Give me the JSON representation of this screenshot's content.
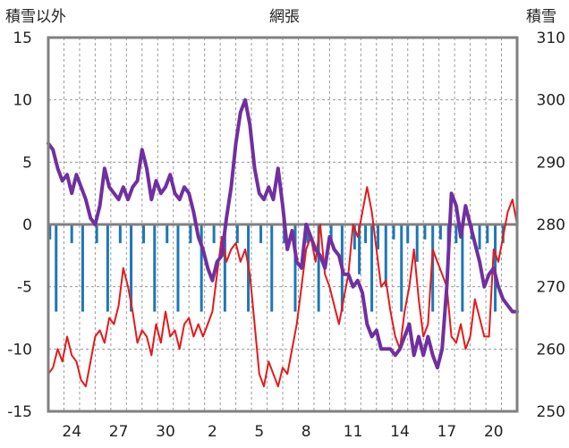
{
  "chart_data": {
    "type": "line",
    "title": "網張",
    "ylabel_left": "積雪以外",
    "ylabel_right": "積雪",
    "ylim_left": [
      -15,
      15
    ],
    "ylim_right": [
      250,
      310
    ],
    "yticks_left": [
      "15",
      "10",
      "5",
      "0",
      "-5",
      "-10",
      "-15"
    ],
    "yticks_right": [
      "310",
      "300",
      "290",
      "280",
      "270",
      "260",
      "250"
    ],
    "x_range_days": [
      0,
      30
    ],
    "xtick_positions": [
      1.5,
      4.5,
      7.5,
      10.5,
      13.5,
      16.5,
      19.5,
      22.5,
      25.5,
      28.5
    ],
    "xtick_labels": [
      "24",
      "27",
      "30",
      "2",
      "5",
      "8",
      "11",
      "14",
      "17",
      "20"
    ],
    "grid": true,
    "colors": {
      "temperature": "#e41a1c",
      "snow_depth": "#7030a0",
      "precipitation": "#1f77b4",
      "frame": "#808080",
      "zero_line": "#808080"
    },
    "series": [
      {
        "axis": "left",
        "style": "line",
        "color": "#e41a1c",
        "x": [
          0,
          0.3,
          0.6,
          0.9,
          1.2,
          1.5,
          1.8,
          2.1,
          2.4,
          2.7,
          3.0,
          3.3,
          3.6,
          3.9,
          4.2,
          4.5,
          4.8,
          5.1,
          5.4,
          5.7,
          6.0,
          6.3,
          6.6,
          6.9,
          7.2,
          7.5,
          7.8,
          8.1,
          8.4,
          8.7,
          9.0,
          9.3,
          9.6,
          9.9,
          10.2,
          10.5,
          10.8,
          11.1,
          11.4,
          11.7,
          12.0,
          12.3,
          12.6,
          12.9,
          13.2,
          13.5,
          13.8,
          14.1,
          14.4,
          14.7,
          15.0,
          15.3,
          15.6,
          15.9,
          16.2,
          16.5,
          16.8,
          17.1,
          17.4,
          17.7,
          18.0,
          18.3,
          18.6,
          18.9,
          19.2,
          19.5,
          19.8,
          20.1,
          20.4,
          20.7,
          21.0,
          21.3,
          21.6,
          21.9,
          22.2,
          22.5,
          22.8,
          23.1,
          23.4,
          23.7,
          24.0,
          24.3,
          24.6,
          24.9,
          25.2,
          25.5,
          25.8,
          26.1,
          26.4,
          26.7,
          27.0,
          27.3,
          27.6,
          27.9,
          28.2,
          28.5,
          28.8,
          29.1,
          29.4,
          29.7,
          30.0
        ],
        "y": [
          -12,
          -11.5,
          -10,
          -11,
          -9,
          -10.5,
          -11,
          -12.5,
          -13,
          -11,
          -9,
          -8.5,
          -9.5,
          -7.5,
          -8,
          -6.5,
          -3.5,
          -5,
          -7,
          -9.5,
          -8.5,
          -9,
          -10.5,
          -8,
          -9.5,
          -7,
          -9,
          -8.5,
          -10,
          -8,
          -7.5,
          -9,
          -8,
          -9,
          -8,
          -7,
          -4,
          -1,
          -3,
          -2,
          -1.5,
          -3,
          -2,
          -4,
          -8,
          -12,
          -13,
          -11,
          -12,
          -13,
          -11.5,
          -12,
          -10,
          -8,
          -5,
          -2,
          -1,
          -3,
          0,
          -4,
          -5,
          -6.5,
          -8,
          -6,
          -4,
          0,
          -1,
          1,
          3,
          1,
          -2,
          -5,
          -4.5,
          -7,
          -9,
          -10,
          -7,
          -5,
          -2,
          -6,
          -9,
          -8,
          -2,
          -3,
          -4,
          -5,
          -9,
          -9.5,
          -8,
          -10,
          -9,
          -6,
          -7.5,
          -9,
          -9,
          -2,
          -3,
          -1,
          1,
          2,
          0
        ]
      },
      {
        "axis": "right",
        "style": "line",
        "color": "#7030a0",
        "x": [
          0,
          0.3,
          0.6,
          0.9,
          1.2,
          1.5,
          1.8,
          2.1,
          2.4,
          2.7,
          3.0,
          3.3,
          3.6,
          3.9,
          4.2,
          4.5,
          4.8,
          5.1,
          5.4,
          5.7,
          6.0,
          6.3,
          6.6,
          6.9,
          7.2,
          7.5,
          7.8,
          8.1,
          8.4,
          8.7,
          9.0,
          9.3,
          9.6,
          9.9,
          10.2,
          10.5,
          10.8,
          11.1,
          11.4,
          11.7,
          12.0,
          12.3,
          12.6,
          12.9,
          13.2,
          13.5,
          13.8,
          14.1,
          14.4,
          14.7,
          15.0,
          15.3,
          15.6,
          15.9,
          16.2,
          16.5,
          16.8,
          17.1,
          17.4,
          17.7,
          18.0,
          18.3,
          18.6,
          18.9,
          19.2,
          19.5,
          19.8,
          20.1,
          20.4,
          20.7,
          21.0,
          21.3,
          21.6,
          21.9,
          22.2,
          22.5,
          22.8,
          23.1,
          23.4,
          23.7,
          24.0,
          24.3,
          24.6,
          24.9,
          25.2,
          25.5,
          25.8,
          26.1,
          26.4,
          26.7,
          27.0,
          27.3,
          27.6,
          27.9,
          28.2,
          28.5,
          28.8,
          29.1,
          29.4,
          29.7,
          30.0
        ],
        "y": [
          293,
          292,
          289,
          287,
          288,
          285,
          288,
          286,
          284,
          281,
          280,
          283,
          289,
          286,
          285,
          284,
          286,
          284,
          286,
          287,
          292,
          289,
          284,
          287,
          285,
          286,
          288,
          285,
          284,
          286,
          285,
          282,
          278,
          276,
          273,
          271,
          274,
          275,
          281,
          286,
          293,
          298,
          300,
          296,
          289,
          285,
          284,
          286,
          284,
          289,
          283,
          276,
          279,
          274,
          273,
          280,
          278,
          276,
          275,
          273,
          278,
          276,
          275,
          272,
          272,
          270,
          271,
          269,
          264,
          262,
          263,
          260,
          260,
          260,
          259,
          260,
          262,
          264,
          259,
          262,
          259,
          262,
          259,
          257,
          260,
          270,
          285,
          283,
          278,
          283,
          280,
          277,
          274,
          270,
          272,
          273,
          270,
          268,
          267,
          266,
          266
        ]
      },
      {
        "axis": "left",
        "style": "bars",
        "color": "#1f77b4",
        "x": [
          0.1,
          0.5,
          1.5,
          2.2,
          3.1,
          3.8,
          4.6,
          5.3,
          6.1,
          6.8,
          7.6,
          8.3,
          9.1,
          9.8,
          10.6,
          11.3,
          12.1,
          12.8,
          13.6,
          14.3,
          15.1,
          15.8,
          16.6,
          17.3,
          18.1,
          18.8,
          19.6,
          19.9,
          20.3,
          20.7,
          21.1,
          21.6,
          22.1,
          22.6,
          23.0,
          23.6,
          24.1,
          24.6,
          25.1,
          25.6,
          26.1,
          26.5,
          27.1,
          27.6,
          28.1,
          28.6,
          29.1
        ],
        "y": [
          -1.2,
          -7,
          -1.5,
          -7,
          -1.5,
          -7,
          -1.5,
          -7,
          -1.5,
          -7,
          -1.5,
          -7,
          -1.5,
          -7,
          -1.5,
          -7,
          -1.5,
          -7,
          -1.5,
          -7,
          -1.5,
          -7,
          -1.5,
          -7,
          -1.5,
          -7,
          -2,
          -4,
          -1.5,
          -7,
          -2,
          -5,
          -1.2,
          -7,
          -1.5,
          -3,
          -1.2,
          -7,
          -1.2,
          -2,
          -1.5,
          -7,
          -1.2,
          -2,
          -1.5,
          -7,
          -1.5
        ]
      }
    ]
  }
}
